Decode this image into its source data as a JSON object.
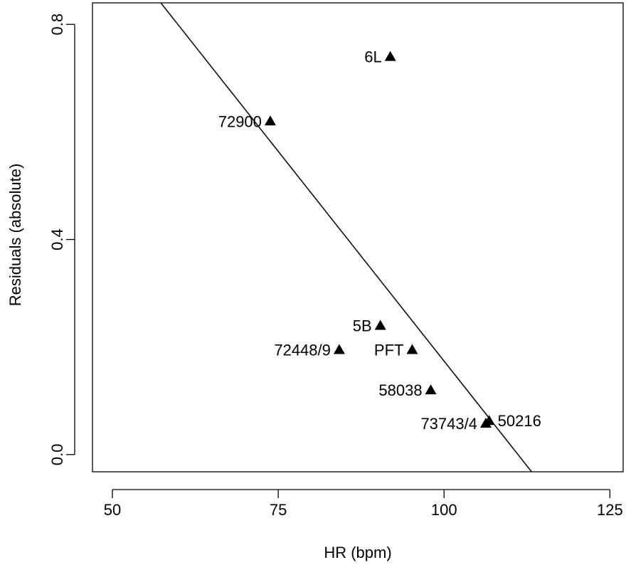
{
  "chart_data": {
    "type": "scatter",
    "xlabel": "HR (bpm)",
    "ylabel": "Residuals (absolute)",
    "xlim": [
      47,
      127
    ],
    "ylim": [
      -0.032,
      0.84
    ],
    "x_ticks": [
      50,
      75,
      100,
      125
    ],
    "y_ticks": [
      0.0,
      0.4,
      0.8
    ],
    "x_tick_labels": [
      "50",
      "75",
      "100",
      "125"
    ],
    "y_tick_labels": [
      "0.0",
      "0.4",
      "0.8"
    ],
    "grid": false,
    "marker": "filled-triangle",
    "points": [
      {
        "label": "6L",
        "x": 91.9,
        "y": 0.74,
        "label_side": "left"
      },
      {
        "label": "72900",
        "x": 73.8,
        "y": 0.62,
        "label_side": "left"
      },
      {
        "label": "5B",
        "x": 90.4,
        "y": 0.24,
        "label_side": "left"
      },
      {
        "label": "72448/9",
        "x": 84.2,
        "y": 0.195,
        "label_side": "left"
      },
      {
        "label": "PFT",
        "x": 95.2,
        "y": 0.195,
        "label_side": "left"
      },
      {
        "label": "58038",
        "x": 98.0,
        "y": 0.12,
        "label_side": "left"
      },
      {
        "label": "73743/4",
        "x": 106.3,
        "y": 0.058,
        "label_side": "left"
      },
      {
        "label": "50216",
        "x": 106.8,
        "y": 0.063,
        "label_side": "right"
      }
    ],
    "fit_line": {
      "x": [
        57.3,
        113.2
      ],
      "y": [
        0.84,
        -0.032
      ]
    }
  }
}
